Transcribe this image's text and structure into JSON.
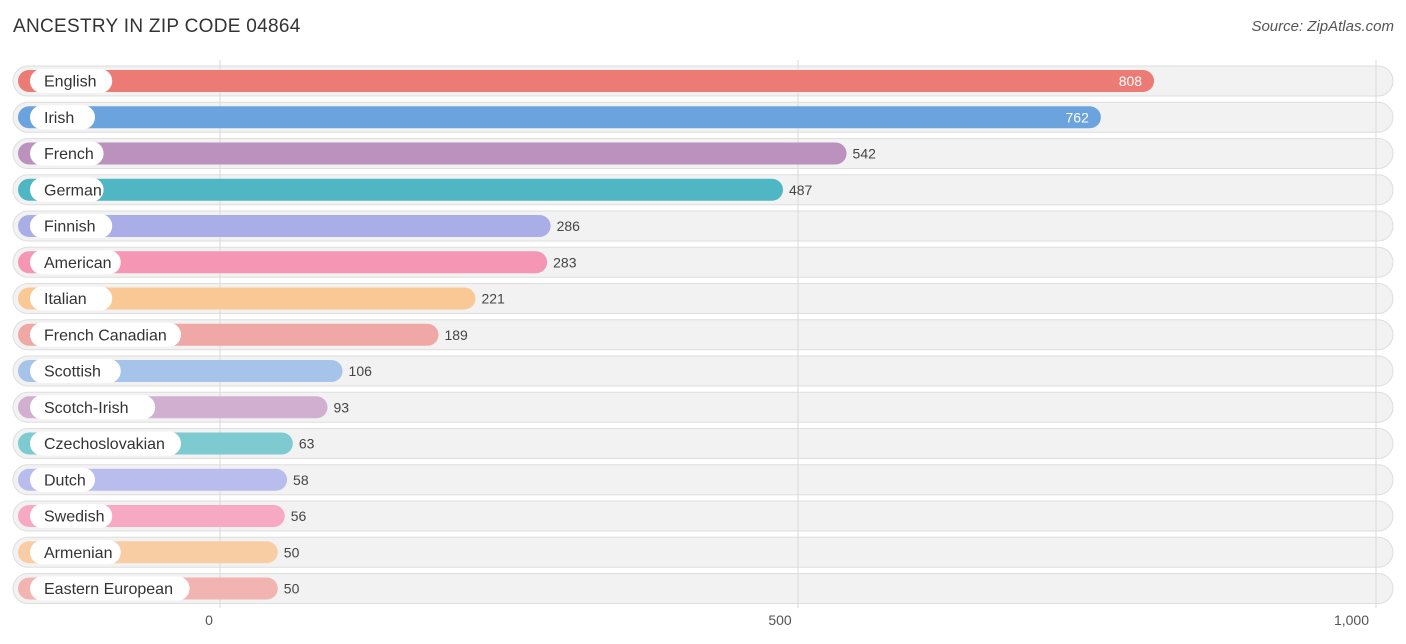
{
  "header": {
    "title": "ANCESTRY IN ZIP CODE 04864",
    "source": "Source: ZipAtlas.com"
  },
  "chart_data": {
    "type": "bar",
    "orientation": "horizontal",
    "title": "ANCESTRY IN ZIP CODE 04864",
    "xlim": [
      0,
      1000
    ],
    "ticks": [
      {
        "value": 0,
        "label": "0"
      },
      {
        "value": 500,
        "label": "500"
      },
      {
        "value": 1000,
        "label": "1,000"
      }
    ],
    "grid": true,
    "categories": [
      "English",
      "Irish",
      "French",
      "German",
      "Finnish",
      "American",
      "Italian",
      "French Canadian",
      "Scottish",
      "Scotch-Irish",
      "Czechoslovakian",
      "Dutch",
      "Swedish",
      "Armenian",
      "Eastern European"
    ],
    "values": [
      808,
      762,
      542,
      487,
      286,
      283,
      221,
      189,
      106,
      93,
      63,
      58,
      56,
      50,
      50
    ],
    "value_labels": [
      "808",
      "762",
      "542",
      "487",
      "286",
      "283",
      "221",
      "189",
      "106",
      "93",
      "63",
      "58",
      "56",
      "50",
      "50"
    ],
    "colors": [
      "#ec7b76",
      "#6ba3de",
      "#bb91bd",
      "#4fb6c4",
      "#a9aee6",
      "#f596b4",
      "#f9c895",
      "#f0a8a6",
      "#a6c4ea",
      "#d1afd1",
      "#7dcbd1",
      "#b8bdee",
      "#f7a9c4",
      "#f9cda4",
      "#f2b4b0"
    ]
  }
}
